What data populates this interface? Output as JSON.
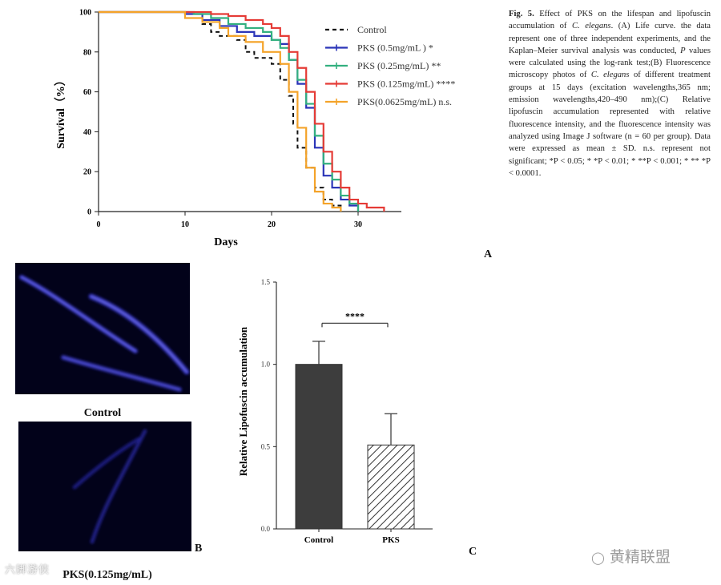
{
  "figure": {
    "caption": {
      "label": "Fig. 5.",
      "text_before_italic": "Effect of PKS on the lifespan and lipofuscin accumulation of ",
      "italic_1": "C. elegans",
      "text_mid_1": ". (A) Life curve. the data represent one of three independent experiments, and the Kaplan–Meier survival analysis was conducted, ",
      "italic_2": "P",
      "text_mid_2": " values were calculated using the log-rank test;(B) Fluorescence microscopy photos of ",
      "italic_3": "C. elegans",
      "text_end": " of different treatment groups at 15 days (excitation wavelengths,365 nm; emission wavelengths,420–490 nm);(C) Relative lipofuscin accumulation represented with relative fluorescence intensity, and the fluorescence intensity was analyzed using Image J software (n = 60 per group). Data were expressed as mean ± SD. n.s. represent not significant; *P < 0.05; * *P < 0.01; * **P < 0.001; * ** *P < 0.0001."
    },
    "panel_letters": {
      "a": "A",
      "b": "B",
      "c": "C"
    },
    "panel_b_labels": {
      "top": "Control",
      "bottom": "PKS(0.125mg/mL)"
    },
    "watermarks": {
      "left": "六脚游侠",
      "right": "黄精联盟"
    }
  },
  "chart_data": [
    {
      "type": "line",
      "title": "",
      "xlabel": "Days",
      "ylabel": "Survival（%）",
      "xlim": [
        0,
        35
      ],
      "ylim": [
        0,
        100
      ],
      "x_ticks": [
        0,
        10,
        20,
        30
      ],
      "y_ticks": [
        0,
        20,
        40,
        60,
        80,
        100
      ],
      "step": true,
      "series": [
        {
          "name": "Control",
          "significance": "",
          "color": "#111111",
          "dashed": true,
          "x": [
            0,
            10,
            12,
            13,
            14,
            16,
            17,
            18,
            20,
            21,
            22,
            22.5,
            23,
            24,
            25,
            26,
            27,
            28
          ],
          "y": [
            100,
            97,
            94,
            90,
            88,
            86,
            80,
            77,
            74,
            66,
            58,
            44,
            32,
            22,
            12,
            6,
            3,
            0
          ]
        },
        {
          "name": "PKS (0.5mg/mL )",
          "significance": "*",
          "color": "#2b35b8",
          "dashed": false,
          "x": [
            0,
            10,
            12,
            14,
            16,
            18,
            20,
            21,
            22,
            23,
            24,
            25,
            26,
            27,
            28,
            29,
            30
          ],
          "y": [
            100,
            99,
            96,
            93,
            90,
            88,
            86,
            84,
            76,
            64,
            52,
            32,
            18,
            12,
            6,
            3,
            0
          ]
        },
        {
          "name": "PKS (0.25mg/mL)",
          "significance": "**",
          "color": "#33b07f",
          "dashed": false,
          "x": [
            0,
            11,
            13,
            15,
            17,
            19,
            20,
            21,
            22,
            23,
            24,
            25,
            26,
            27,
            28,
            29,
            30
          ],
          "y": [
            100,
            99,
            97,
            94,
            92,
            90,
            86,
            82,
            76,
            66,
            54,
            38,
            24,
            16,
            8,
            4,
            0
          ]
        },
        {
          "name": "PKS (0.125mg/mL)",
          "significance": "****",
          "color": "#e53b36",
          "dashed": false,
          "x": [
            0,
            13,
            15,
            17,
            19,
            20,
            21,
            22,
            23,
            24,
            25,
            26,
            27,
            28,
            29,
            30,
            31,
            33
          ],
          "y": [
            100,
            99,
            98,
            96,
            94,
            92,
            88,
            80,
            72,
            60,
            44,
            30,
            20,
            12,
            6,
            4,
            2,
            0
          ]
        },
        {
          "name": "PKS(0.0625mg/mL)",
          "significance": "n.s.",
          "color": "#f4a32a",
          "dashed": false,
          "x": [
            0,
            10,
            12,
            14,
            15,
            17,
            19,
            21,
            22,
            23,
            24,
            25,
            26,
            27,
            28
          ],
          "y": [
            100,
            97,
            95,
            92,
            88,
            85,
            80,
            74,
            60,
            42,
            22,
            10,
            4,
            2,
            0
          ]
        }
      ]
    },
    {
      "type": "bar",
      "title": "",
      "xlabel": "",
      "ylabel": "Relative Lipofuscin accumulation",
      "ylim": [
        0,
        1.5
      ],
      "y_ticks": [
        0.0,
        0.5,
        1.0,
        1.5
      ],
      "y_tick_labels": [
        "0.0",
        "0.5",
        "1.0",
        "1.5"
      ],
      "categories": [
        "Control",
        "PKS"
      ],
      "values": [
        1.0,
        0.51
      ],
      "errors": [
        0.14,
        0.19
      ],
      "fill": [
        "solid",
        "hatched"
      ],
      "bar_color": "#3d3d3d",
      "significance": "****"
    }
  ]
}
